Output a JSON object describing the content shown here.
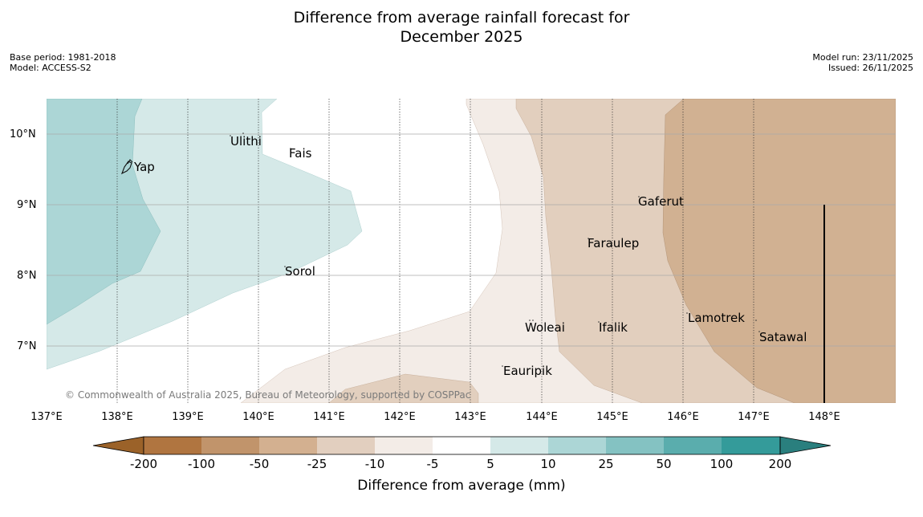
{
  "title": {
    "line1": "Difference from average rainfall forecast for",
    "line2": "December 2025"
  },
  "meta": {
    "base_period": "Base period: 1981-2018",
    "model": "Model: ACCESS-S2",
    "model_run": "Model run: 23/11/2025",
    "issued": "Issued: 26/11/2025"
  },
  "map": {
    "longitude_labels": [
      "137°E",
      "138°E",
      "139°E",
      "140°E",
      "141°E",
      "142°E",
      "143°E",
      "144°E",
      "145°E",
      "146°E",
      "147°E",
      "148°E"
    ],
    "latitude_labels": [
      "10°N",
      "9°N",
      "8°N",
      "7°N"
    ],
    "places": [
      {
        "name": "Yap"
      },
      {
        "name": "Ulithi"
      },
      {
        "name": "Fais"
      },
      {
        "name": "Gaferut"
      },
      {
        "name": "Faraulep"
      },
      {
        "name": "Sorol"
      },
      {
        "name": "Woleai"
      },
      {
        "name": "Ifalik"
      },
      {
        "name": "Lamotrek"
      },
      {
        "name": "Satawal"
      },
      {
        "name": "Eauripik"
      }
    ],
    "copyright": "© Commonwealth of Australia 2025, Bureau of Meteorology, supported by COSPPac"
  },
  "colorbar": {
    "ticks": [
      "-200",
      "-100",
      "-50",
      "-25",
      "-10",
      "-5",
      "5",
      "10",
      "25",
      "50",
      "100",
      "200"
    ],
    "colors": [
      "#9b6229",
      "#b07540",
      "#c1946b",
      "#d3b090",
      "#e2cfbf",
      "#f3ece7",
      "#ffffff",
      "#d5e9e8",
      "#acd6d6",
      "#84c2c2",
      "#5aadad",
      "#349b9a",
      "#2a7f7e"
    ],
    "label": "Difference from average (mm)"
  },
  "colors": {
    "dry_strong": "#d1b192",
    "dry_moderate": "#e2cfbe",
    "dry_light": "#f3ece7",
    "wet_light": "#d5e9e8",
    "wet_moderate": "#acd6d6"
  }
}
